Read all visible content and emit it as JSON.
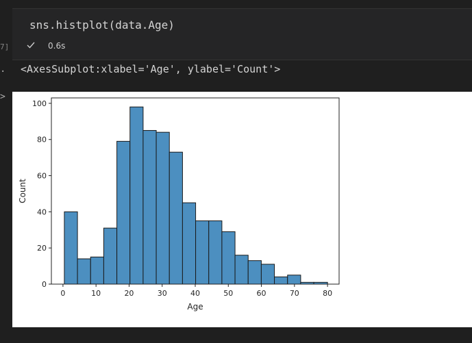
{
  "cell": {
    "code": "sns.histplot(data.Age)",
    "exec_count": "7]",
    "timing": "0.6s",
    "output_marker": ".",
    "output_text": "<AxesSubplot:xlabel='Age', ylabel='Count'>",
    "chevron": ">"
  },
  "chart_data": {
    "type": "bar",
    "xlabel": "Age",
    "ylabel": "Count",
    "xlim": [
      -3.5,
      83.5
    ],
    "ylim": [
      0,
      103
    ],
    "xticks": [
      0,
      10,
      20,
      30,
      40,
      50,
      60,
      70,
      80
    ],
    "yticks": [
      0,
      20,
      40,
      60,
      80,
      100
    ],
    "bin_edges": [
      0.42,
      4.39,
      8.36,
      12.33,
      16.3,
      20.27,
      24.24,
      28.21,
      32.18,
      36.15,
      40.12,
      44.09,
      48.06,
      52.03,
      56.0,
      59.97,
      63.94,
      67.91,
      71.88,
      75.85,
      80.0
    ],
    "counts": [
      40,
      14,
      15,
      31,
      79,
      98,
      85,
      84,
      73,
      45,
      35,
      35,
      29,
      16,
      13,
      11,
      4,
      5,
      1,
      1
    ],
    "bar_color": "#4c8fc0",
    "edge_color": "#1a1a1a",
    "grid": false,
    "legend": "none"
  }
}
